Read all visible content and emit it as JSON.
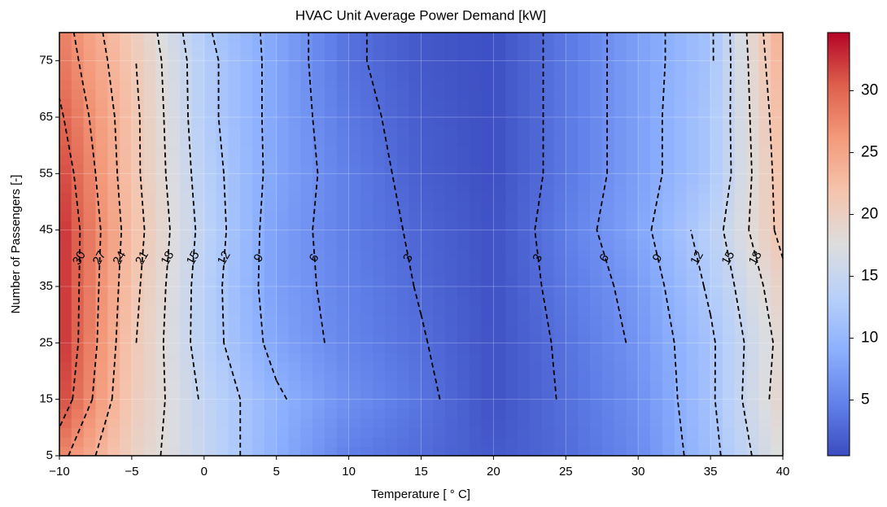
{
  "chart_data": {
    "type": "contour",
    "title": "HVAC Unit Average Power Demand [kW]",
    "x_label": "Temperature [ ° C]",
    "y_label": "Number of Passengers [-]",
    "x": [
      -10,
      -5,
      0,
      5,
      10,
      15,
      20,
      25,
      30,
      35,
      40
    ],
    "y": [
      5,
      15,
      25,
      35,
      45,
      55,
      65,
      75,
      80
    ],
    "z": [
      [
        28,
        20,
        15,
        9,
        4.5,
        3,
        1.5,
        3,
        5.5,
        11,
        18
      ],
      [
        32,
        21,
        14.5,
        9.5,
        6,
        3.7,
        1,
        3.3,
        6,
        11.5,
        19.5
      ],
      [
        33,
        21.5,
        13.5,
        8,
        5,
        3.2,
        1,
        3.5,
        6.5,
        11.5,
        19
      ],
      [
        33,
        22,
        13.5,
        7.5,
        4.8,
        2.8,
        1,
        4,
        7,
        12.5,
        20
      ],
      [
        33,
        22.5,
        14,
        7.5,
        4.5,
        2.5,
        1,
        4.5,
        8,
        13.5,
        22
      ],
      [
        32,
        22,
        13.5,
        8,
        4.5,
        2,
        0.8,
        4,
        7.5,
        12,
        22.5
      ],
      [
        30.5,
        22,
        13,
        8,
        4,
        1.8,
        0.8,
        4,
        7.5,
        12,
        23
      ],
      [
        29,
        21.5,
        13,
        8,
        3.5,
        1.5,
        0.8,
        4,
        7.5,
        11.5,
        24
      ],
      [
        28.5,
        21,
        12.5,
        8,
        3.5,
        1.5,
        0.8,
        4,
        7.5,
        11.5,
        24.5
      ]
    ],
    "levels": [
      3,
      6,
      9,
      12,
      15,
      18,
      21,
      24,
      27,
      30
    ],
    "xlim": [
      -10,
      40
    ],
    "ylim": [
      5,
      80
    ],
    "xticks": [
      {
        "value": -10,
        "label": "−10"
      },
      {
        "value": -5,
        "label": "−5"
      },
      0,
      5,
      10,
      15,
      20,
      25,
      30,
      35,
      40
    ],
    "yticks": [
      5,
      15,
      25,
      35,
      45,
      55,
      65,
      75
    ],
    "clim": [
      0.5,
      34.7
    ],
    "cticks": [
      5,
      10,
      15,
      20,
      25,
      30
    ],
    "colormap": "coolwarm",
    "grid": true
  }
}
